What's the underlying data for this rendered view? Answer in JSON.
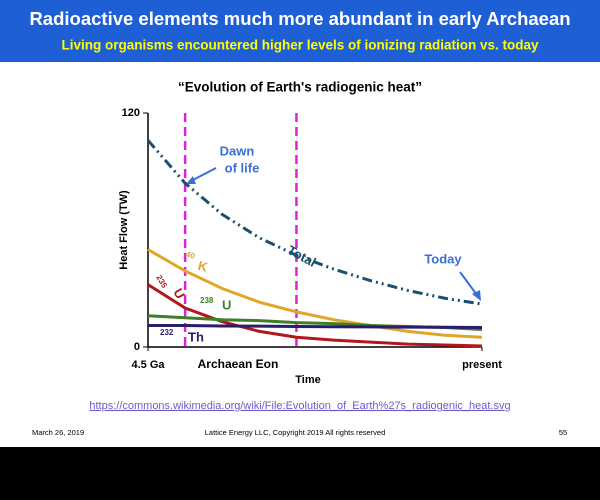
{
  "header": {
    "title": "Radioactive elements much more abundant in early Archaean",
    "subtitle": "Living organisms encountered higher levels of ionizing radiation vs. today"
  },
  "chart_data": {
    "type": "line",
    "title": "“Evolution of Earth's radiogenic heat”",
    "x_label": "Time",
    "y_label": "Heat Flow (TW)",
    "x": [
      4.5,
      4.0,
      3.5,
      3.0,
      2.5,
      2.0,
      1.5,
      1.0,
      0.5,
      0
    ],
    "xlim": [
      4.5,
      0
    ],
    "xticks": [
      {
        "value": 4.5,
        "label": "4.5 Ga"
      },
      {
        "value": 0,
        "label": "present"
      }
    ],
    "ylim": [
      0,
      120
    ],
    "yticks": [
      0,
      120
    ],
    "vlines": [
      4.0,
      2.5
    ],
    "vline_color": "#e020e0",
    "series": [
      {
        "name": "Total",
        "color": "#1c4f6e",
        "values": [
          106,
          84,
          68,
          56,
          47,
          40,
          34,
          29,
          25,
          22
        ]
      },
      {
        "name": "K",
        "mass": "40",
        "color": "#e0a62a",
        "values": [
          50,
          39,
          30,
          23,
          18,
          14,
          11,
          8,
          6,
          5
        ]
      },
      {
        "name": "U",
        "mass": "235",
        "color": "#b3171e",
        "values": [
          32,
          20,
          13,
          8,
          5,
          3.5,
          2.5,
          1.5,
          1,
          0.5
        ]
      },
      {
        "name": "U",
        "mass": "238",
        "color": "#3d7f2a",
        "values": [
          16,
          15,
          14,
          13.5,
          12.5,
          12,
          11,
          10.5,
          10,
          9
        ]
      },
      {
        "name": "Th",
        "mass": "232",
        "color": "#2b1d6b",
        "values": [
          11,
          11,
          10.8,
          10.7,
          10.5,
          10.4,
          10.3,
          10.2,
          10.1,
          10
        ]
      }
    ],
    "annotations": {
      "dawn": [
        "Dawn",
        "of life"
      ],
      "today": "Today",
      "eon": "Archaean Eon"
    }
  },
  "source_link": "https://commons.wikimedia.org/wiki/File:Evolution_of_Earth%27s_radiogenic_heat.svg",
  "footer": {
    "date": "March 26,  2019",
    "copyright": "Lattice Energy LLC, Copyright 2019   All rights reserved",
    "page": "55"
  }
}
